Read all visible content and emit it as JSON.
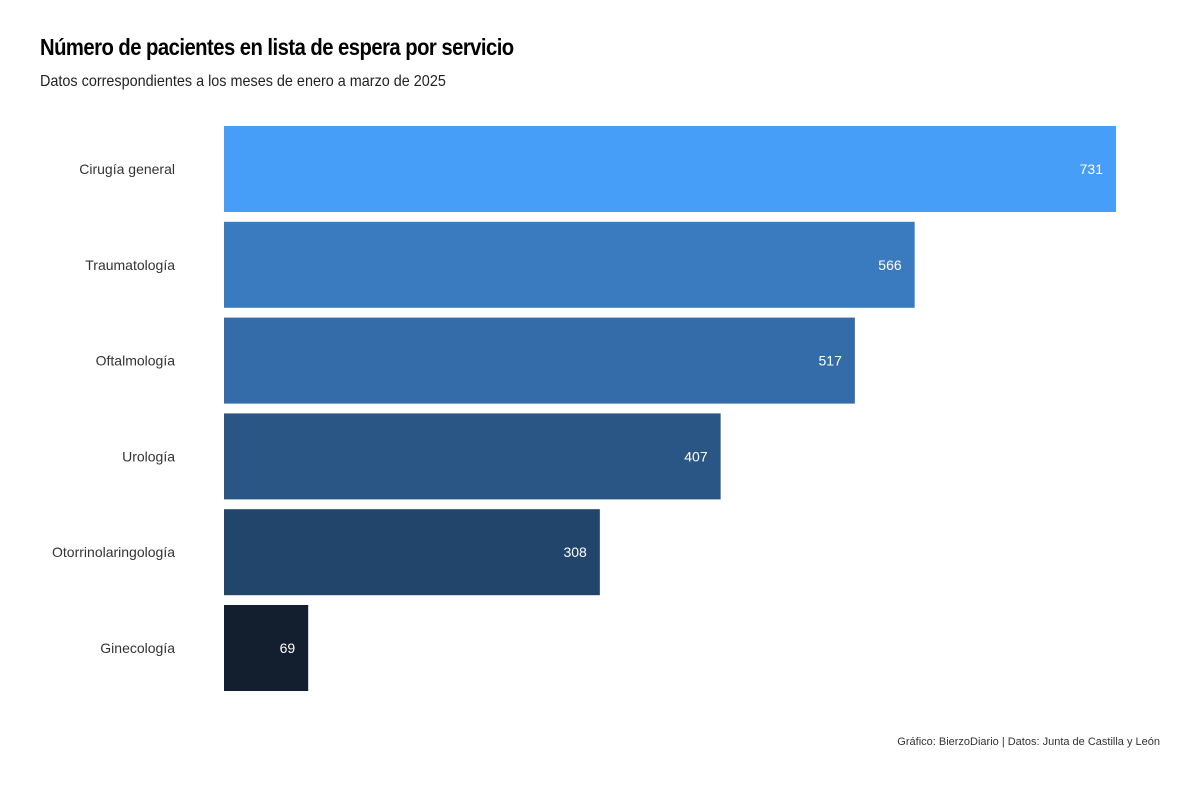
{
  "title": "Número de pacientes en lista de espera por servicio",
  "subtitle": "Datos correspondientes a los meses de enero a marzo de 2025",
  "caption": "Gráfico: BierzoDiario | Datos: Junta de Castilla y León",
  "chart_data": {
    "type": "bar",
    "orientation": "horizontal",
    "title": "Número de pacientes en lista de espera por servicio",
    "subtitle": "Datos correspondientes a los meses de enero a marzo de 2025",
    "xlabel": "",
    "ylabel": "",
    "categories": [
      "Cirugía general",
      "Traumatología",
      "Oftalmología",
      "Urología",
      "Otorrinolaringología",
      "Ginecología"
    ],
    "values": [
      731,
      566,
      517,
      407,
      308,
      69
    ],
    "colors": [
      "#479ef8",
      "#3a7bbf",
      "#336ca9",
      "#2a5685",
      "#22456c",
      "#131f2e"
    ],
    "xlim": [
      0,
      731
    ],
    "grid": false,
    "legend": "none"
  }
}
